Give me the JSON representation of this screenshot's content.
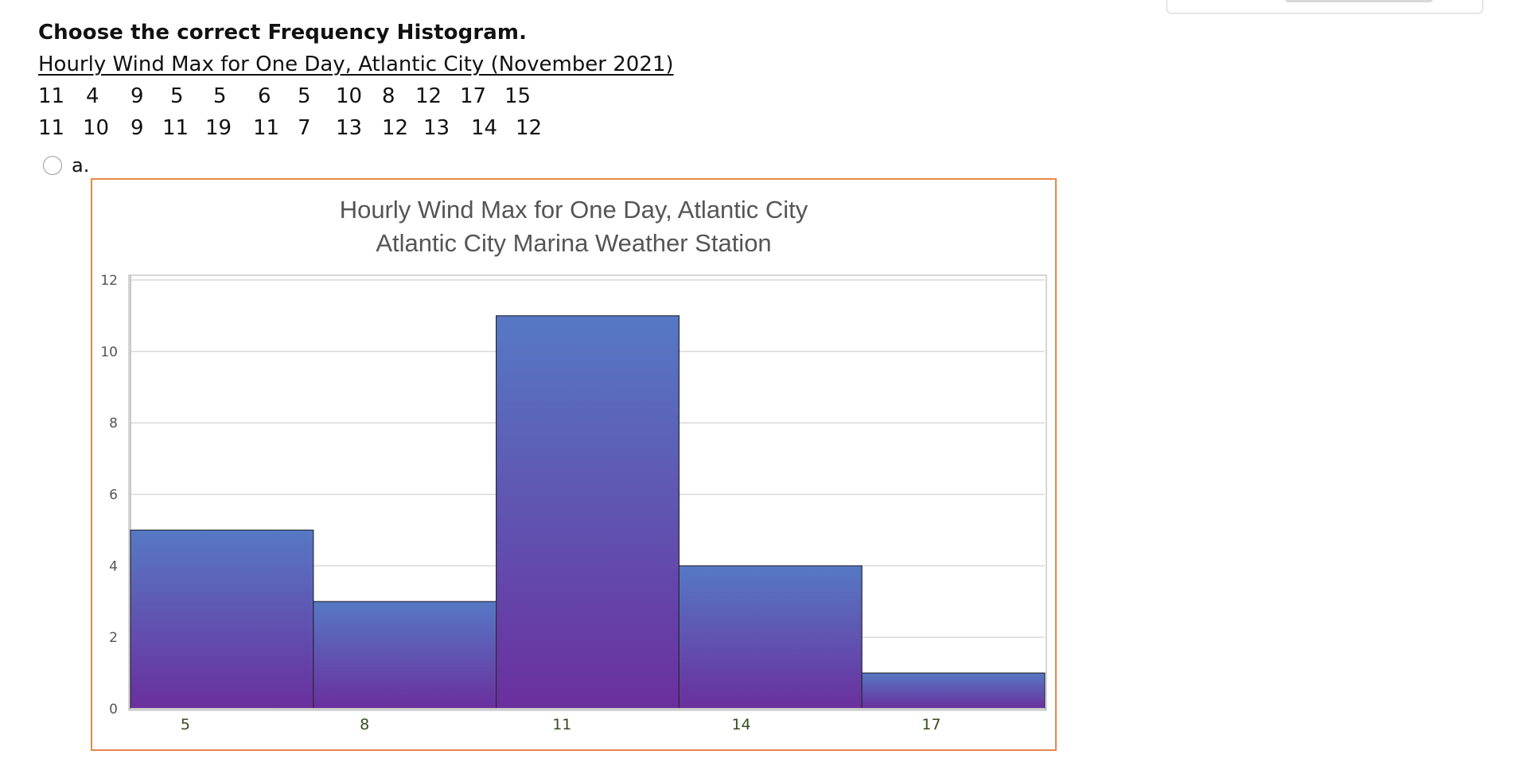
{
  "question": {
    "prompt": "Choose the correct Frequency Histogram.",
    "dataset_title": "Hourly Wind Max for One Day, Atlantic City (November 2021)",
    "rows": [
      [
        "11",
        "4",
        "9",
        "5",
        "5",
        "6",
        "5",
        "10",
        "8",
        "12",
        "17",
        "15"
      ],
      [
        "11",
        "10",
        "9",
        "11",
        "19",
        "11",
        "7",
        "13",
        "12",
        "13",
        "14",
        "12"
      ]
    ]
  },
  "option_a": {
    "label": "a.",
    "selected": false
  },
  "chart_data": {
    "type": "bar",
    "title": "Hourly Wind Max for One Day, Atlantic City",
    "subtitle": "Atlantic City Marina Weather Station",
    "xlabel": "",
    "ylabel": "",
    "categories": [
      "5",
      "8",
      "11",
      "14",
      "17"
    ],
    "values": [
      5,
      3,
      11,
      4,
      1
    ],
    "ylim": [
      0,
      12
    ],
    "yticks": [
      0,
      2,
      4,
      6,
      8,
      10,
      12
    ],
    "grid": true,
    "legend": "none",
    "colors": {
      "bar_top": "#5679c4",
      "bar_bottom": "#6a2f9e",
      "bar_stroke": "#2b2b3a",
      "grid": "#d9d9d9",
      "frame": "#e8884a",
      "title": "#555555",
      "x_tick": "#334d1c",
      "y_tick": "#555555"
    }
  }
}
